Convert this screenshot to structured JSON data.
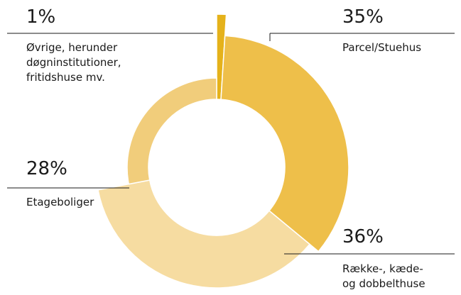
{
  "chart_data": {
    "type": "pie",
    "categories": [
      [
        "Øvrige, herunder",
        "døgninstitutioner,",
        "fritidshuse mv."
      ],
      [
        "Parcel/Stuehus"
      ],
      [
        "Række-, kæde-",
        "og dobbelthuse"
      ],
      [
        "Etageboliger"
      ]
    ],
    "values": [
      1,
      35,
      36,
      28
    ],
    "value_labels": [
      "1%",
      "35%",
      "36%",
      "28%"
    ],
    "colors": [
      "#e5b21b",
      "#eebf4a",
      "#f6dca1",
      "#f1cd7b"
    ]
  }
}
